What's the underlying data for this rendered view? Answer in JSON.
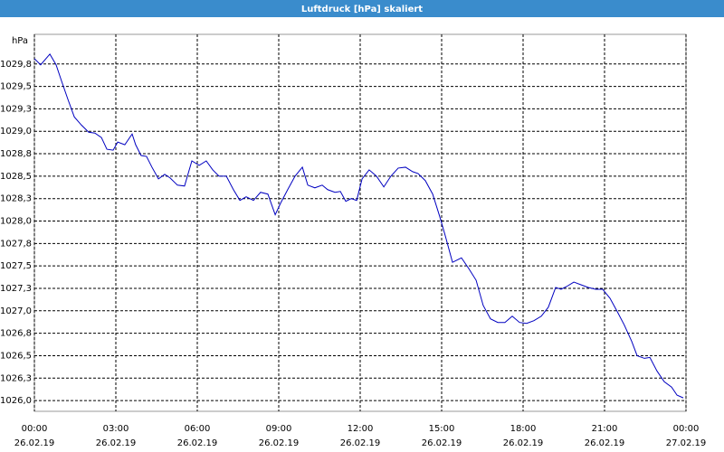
{
  "chart_data": {
    "type": "line",
    "title": "Luftdruck [hPa] skaliert",
    "ylabel": "hPa",
    "x": [
      0,
      0.23,
      0.57,
      0.8,
      1.0,
      1.23,
      1.47,
      1.73,
      2.0,
      2.23,
      2.47,
      2.67,
      2.9,
      3.07,
      3.33,
      3.6,
      3.73,
      3.93,
      4.13,
      4.33,
      4.57,
      4.8,
      5.0,
      5.27,
      5.53,
      5.8,
      6.07,
      6.33,
      6.57,
      6.8,
      7.07,
      7.33,
      7.57,
      7.8,
      8.07,
      8.33,
      8.6,
      8.87,
      9.07,
      9.33,
      9.6,
      9.87,
      10.07,
      10.33,
      10.6,
      10.8,
      11.07,
      11.27,
      11.47,
      11.67,
      11.87,
      12.07,
      12.33,
      12.6,
      12.87,
      13.13,
      13.4,
      13.67,
      13.93,
      14.13,
      14.4,
      14.67,
      14.93,
      15.13,
      15.4,
      15.73,
      16.0,
      16.27,
      16.53,
      16.8,
      17.07,
      17.33,
      17.6,
      17.87,
      18.13,
      18.4,
      18.67,
      18.93,
      19.2,
      19.4,
      19.6,
      19.87,
      20.13,
      20.4,
      20.67,
      20.93,
      21.2,
      21.47,
      21.73,
      22.0,
      22.2,
      22.47,
      22.67,
      22.93,
      23.2,
      23.47,
      23.67,
      23.9
    ],
    "series": [
      {
        "name": "Luftdruck",
        "color": "#0000c0",
        "values": [
          1029.81,
          1029.74,
          1029.86,
          1029.74,
          1029.56,
          1029.36,
          1029.16,
          1029.07,
          1028.99,
          1028.98,
          1028.93,
          1028.8,
          1028.79,
          1028.88,
          1028.85,
          1028.97,
          1028.85,
          1028.73,
          1028.72,
          1028.6,
          1028.47,
          1028.52,
          1028.48,
          1028.4,
          1028.39,
          1028.67,
          1028.62,
          1028.67,
          1028.57,
          1028.5,
          1028.5,
          1028.35,
          1028.23,
          1028.27,
          1028.23,
          1028.32,
          1028.3,
          1028.07,
          1028.2,
          1028.35,
          1028.5,
          1028.6,
          1028.4,
          1028.37,
          1028.4,
          1028.35,
          1028.32,
          1028.33,
          1028.22,
          1028.25,
          1028.23,
          1028.47,
          1028.57,
          1028.5,
          1028.38,
          1028.5,
          1028.59,
          1028.6,
          1028.55,
          1028.53,
          1028.45,
          1028.3,
          1028.05,
          1027.84,
          1027.54,
          1027.59,
          1027.47,
          1027.34,
          1027.06,
          1026.91,
          1026.87,
          1026.87,
          1026.94,
          1026.87,
          1026.86,
          1026.89,
          1026.94,
          1027.04,
          1027.26,
          1027.24,
          1027.27,
          1027.32,
          1027.29,
          1027.26,
          1027.24,
          1027.24,
          1027.14,
          1026.99,
          1026.84,
          1026.66,
          1026.5,
          1026.47,
          1026.48,
          1026.33,
          1026.21,
          1026.15,
          1026.06,
          1026.03
        ]
      }
    ],
    "xlim": [
      0,
      24
    ],
    "xticks": [
      {
        "value": 0,
        "label": "00:00"
      },
      {
        "value": 3,
        "label": "03:00"
      },
      {
        "value": 6,
        "label": "06:00"
      },
      {
        "value": 9,
        "label": "09:00"
      },
      {
        "value": 12,
        "label": "12:00"
      },
      {
        "value": 15,
        "label": "15:00"
      },
      {
        "value": 18,
        "label": "18:00"
      },
      {
        "value": 21,
        "label": "21:00"
      },
      {
        "value": 24,
        "label": "00:00"
      }
    ],
    "xtick_dates": [
      "26.02.19",
      "26.02.19",
      "26.02.19",
      "26.02.19",
      "26.02.19",
      "26.02.19",
      "26.02.19",
      "26.02.19",
      "27.02.19"
    ],
    "ylim": [
      1025.88,
      1030.08
    ],
    "yticks": [
      {
        "value": 1026.0,
        "label": "1026,0"
      },
      {
        "value": 1026.25,
        "label": "1026,3"
      },
      {
        "value": 1026.5,
        "label": "1026,5"
      },
      {
        "value": 1026.75,
        "label": "1026,8"
      },
      {
        "value": 1027.0,
        "label": "1027,0"
      },
      {
        "value": 1027.25,
        "label": "1027,3"
      },
      {
        "value": 1027.5,
        "label": "1027,5"
      },
      {
        "value": 1027.75,
        "label": "1027,8"
      },
      {
        "value": 1028.0,
        "label": "1028,0"
      },
      {
        "value": 1028.25,
        "label": "1028,3"
      },
      {
        "value": 1028.5,
        "label": "1028,5"
      },
      {
        "value": 1028.75,
        "label": "1028,8"
      },
      {
        "value": 1029.0,
        "label": "1029,0"
      },
      {
        "value": 1029.25,
        "label": "1029,3"
      },
      {
        "value": 1029.5,
        "label": "1029,5"
      },
      {
        "value": 1029.75,
        "label": "1029,8"
      }
    ],
    "grid": true
  }
}
